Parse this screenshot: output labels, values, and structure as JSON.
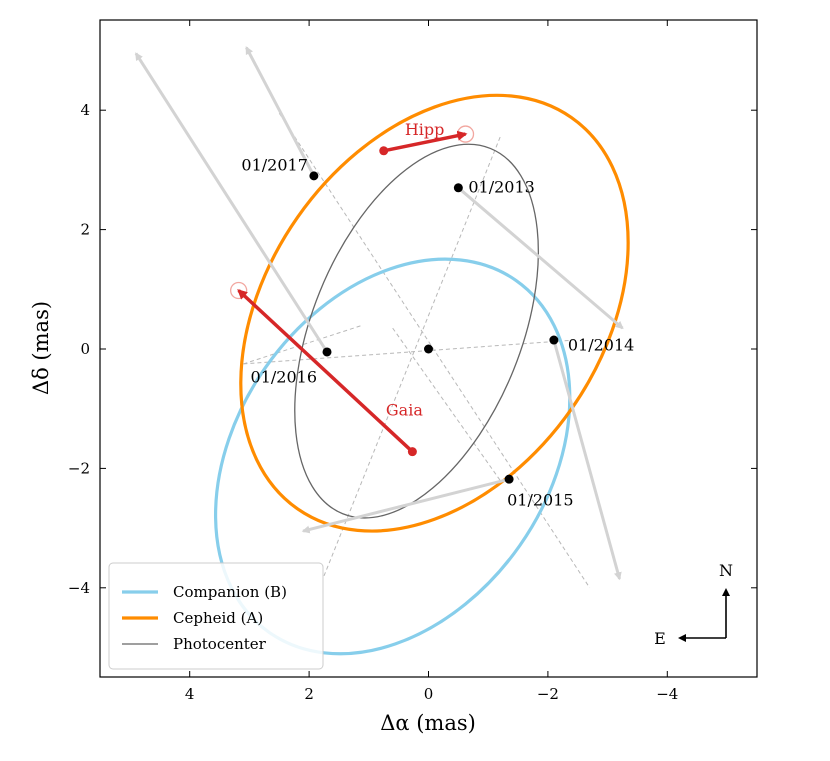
{
  "chart_data": {
    "type": "orbit-plot",
    "xlabel": "Δα (mas)",
    "ylabel": "Δδ (mas)",
    "xlim": [
      5.5,
      -5.5
    ],
    "ylim": [
      -5.5,
      5.5
    ],
    "xticks": [
      4,
      2,
      0,
      -2,
      -4
    ],
    "xtick_labels": [
      "4",
      "2",
      "0",
      "−2",
      "−4"
    ],
    "yticks": [
      4,
      2,
      0,
      -2,
      -4
    ],
    "ytick_labels": [
      "4",
      "2",
      "0",
      "−2",
      "−4"
    ],
    "center": [
      0,
      0
    ],
    "orbits": [
      {
        "name": "Companion (B)",
        "color": "#87ceeb",
        "width": 3.2,
        "cx": 0.6,
        "cy": -1.8,
        "a": 3.6,
        "b": 2.6,
        "angle_deg": 125
      },
      {
        "name": "Cepheid (A)",
        "color": "#ff8c00",
        "width": 3.2,
        "cx": -0.1,
        "cy": 0.6,
        "a": 4.0,
        "b": 2.8,
        "angle_deg": 125
      },
      {
        "name": "Photocenter",
        "color": "#666666",
        "width": 1.3,
        "cx": 0.2,
        "cy": 0.3,
        "a": 3.3,
        "b": 1.75,
        "angle_deg": 112
      }
    ],
    "epochs": [
      {
        "label": "01/2013",
        "x": -0.5,
        "y": 2.7
      },
      {
        "label": "01/2014",
        "x": -2.1,
        "y": 0.15
      },
      {
        "label": "01/2015",
        "x": -1.35,
        "y": -2.18
      },
      {
        "label": "01/2016",
        "x": 1.7,
        "y": -0.05
      },
      {
        "label": "01/2017",
        "x": 1.92,
        "y": 2.9
      }
    ],
    "gray_arrows": [
      {
        "from": [
          -0.5,
          2.7
        ],
        "to": [
          -3.25,
          0.35
        ]
      },
      {
        "from": [
          -2.1,
          0.15
        ],
        "to": [
          -3.2,
          -3.85
        ]
      },
      {
        "from": [
          -1.35,
          -2.18
        ],
        "to": [
          2.1,
          -3.05
        ]
      },
      {
        "from": [
          1.7,
          -0.05
        ],
        "to": [
          4.9,
          4.95
        ]
      },
      {
        "from": [
          1.92,
          2.9
        ],
        "to": [
          3.05,
          5.05
        ]
      }
    ],
    "dashed_lines": [
      {
        "from": [
          2.5,
          3.95
        ],
        "to": [
          -2.7,
          -4.0
        ]
      },
      {
        "from": [
          -1.2,
          3.55
        ],
        "to": [
          1.75,
          -3.8
        ]
      },
      {
        "from": [
          3.1,
          -0.25
        ],
        "to": [
          -2.45,
          0.15
        ]
      },
      {
        "from": [
          3.1,
          -0.25
        ],
        "to": [
          1.1,
          0.4
        ]
      },
      {
        "from": [
          0.6,
          0.35
        ],
        "to": [
          -1.2,
          -2.2
        ]
      }
    ],
    "red_measurements": [
      {
        "label": "Hipp",
        "from": [
          0.75,
          3.32
        ],
        "to": [
          -0.62,
          3.6
        ],
        "marker": [
          -0.62,
          3.6
        ]
      },
      {
        "label": "Gaia",
        "from": [
          0.27,
          -1.72
        ],
        "to": [
          3.18,
          0.98
        ],
        "marker": [
          3.18,
          0.98
        ]
      }
    ],
    "compass": {
      "north": "N",
      "east": "E"
    },
    "legend_position": "lower-left"
  }
}
